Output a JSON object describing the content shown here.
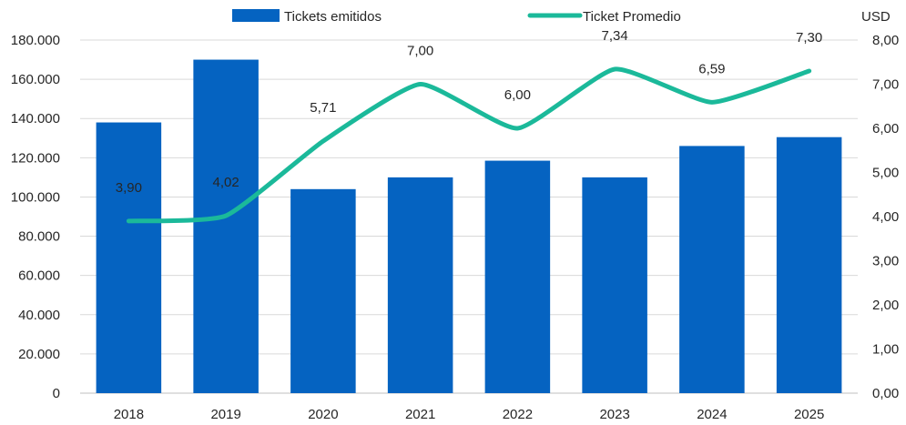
{
  "chart_data": {
    "type": "bar",
    "categories": [
      "2018",
      "2019",
      "2020",
      "2021",
      "2022",
      "2023",
      "2024",
      "2025"
    ],
    "series": [
      {
        "name": "Tickets emitidos",
        "type": "bar",
        "axis": "left",
        "color": "#0563C1",
        "values": [
          138000,
          170000,
          104000,
          110000,
          118500,
          110000,
          126000,
          130500
        ]
      },
      {
        "name": "Ticket Promedio",
        "type": "line",
        "axis": "right",
        "color": "#1BB99A",
        "values": [
          3.9,
          4.02,
          5.71,
          7.0,
          6.0,
          7.34,
          6.59,
          7.3
        ],
        "labels": [
          "3,90",
          "4,02",
          "5,71",
          "7,00",
          "6,00",
          "7,34",
          "6,59",
          "7,30"
        ]
      }
    ],
    "y_left": {
      "range": [
        0,
        180000
      ],
      "ticks": [
        "0",
        "20.000",
        "40.000",
        "60.000",
        "80.000",
        "100.000",
        "120.000",
        "140.000",
        "160.000",
        "180.000"
      ]
    },
    "y_right": {
      "label": "USD",
      "range": [
        0,
        8
      ],
      "ticks": [
        "0,00",
        "1,00",
        "2,00",
        "3,00",
        "4,00",
        "5,00",
        "6,00",
        "7,00",
        "8,00"
      ]
    },
    "grid": true,
    "legend": "top"
  }
}
